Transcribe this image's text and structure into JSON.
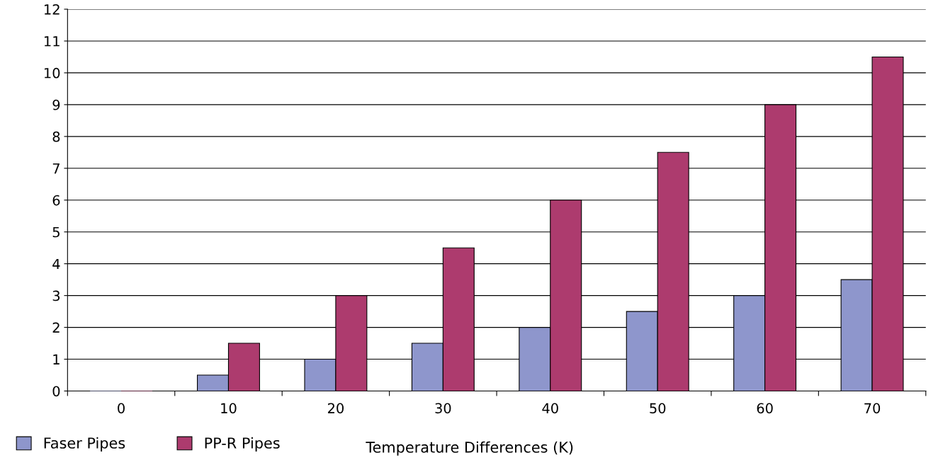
{
  "chart_data": {
    "type": "bar",
    "xlabel": "Temperature Differences (K)",
    "categories": [
      "0",
      "10",
      "20",
      "30",
      "40",
      "50",
      "60",
      "70"
    ],
    "series": [
      {
        "name": "Faser Pipes",
        "color": "#8e96cc",
        "values": [
          0,
          0.5,
          1,
          1.5,
          2,
          2.5,
          3,
          3.5
        ]
      },
      {
        "name": "PP-R Pipes",
        "color": "#ad3b6e",
        "values": [
          0,
          1.5,
          3,
          4.5,
          6,
          7.5,
          9,
          10.5
        ]
      }
    ],
    "ylim": [
      0,
      12
    ],
    "yticks": [
      0,
      1,
      2,
      3,
      4,
      5,
      6,
      7,
      8,
      9,
      10,
      11,
      12
    ],
    "grid": "y",
    "legend": "bottom left"
  }
}
